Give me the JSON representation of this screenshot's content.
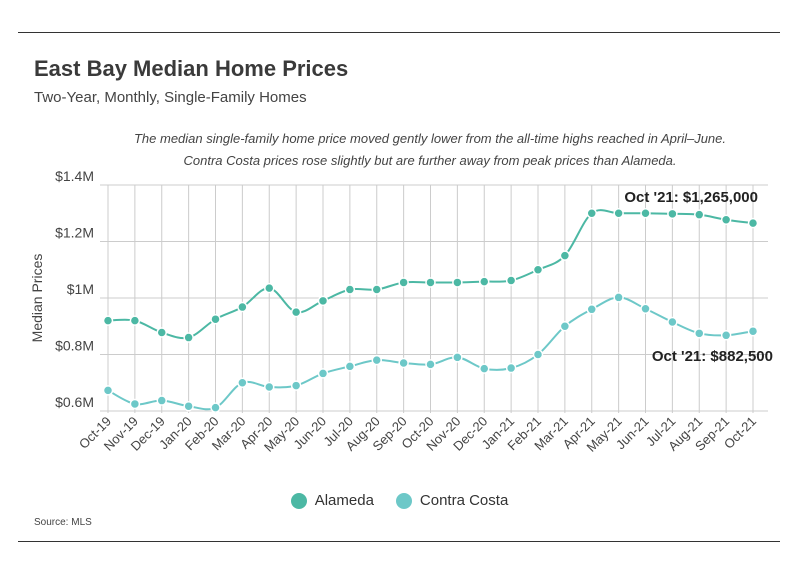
{
  "header": {
    "title": "East Bay Median Home Prices",
    "subtitle": "Two-Year, Monthly, Single-Family Homes"
  },
  "note": {
    "line1": "The median single-family home price moved gently lower from the all-time highs reached in April–June.",
    "line2": "Contra Costa prices rose slightly but are further away from peak prices than Alameda."
  },
  "source": "Source:  MLS",
  "colors": {
    "alameda": "#4cb8a4",
    "contra_costa": "#6dc8c8",
    "grid": "#cccccc",
    "axis_text": "#444444"
  },
  "chart_data": {
    "type": "line",
    "ylabel": "Median Prices",
    "ylim": [
      600000,
      1400000
    ],
    "yticks": [
      {
        "value": 600000,
        "label": "$0.6M"
      },
      {
        "value": 800000,
        "label": "$0.8M"
      },
      {
        "value": 1000000,
        "label": "$1M"
      },
      {
        "value": 1200000,
        "label": "$1.2M"
      },
      {
        "value": 1400000,
        "label": "$1.4M"
      }
    ],
    "categories": [
      "Oct-19",
      "Nov-19",
      "Dec-19",
      "Jan-20",
      "Feb-20",
      "Mar-20",
      "Apr-20",
      "May-20",
      "Jun-20",
      "Jul-20",
      "Aug-20",
      "Sep-20",
      "Oct-20",
      "Nov-20",
      "Dec-20",
      "Jan-21",
      "Feb-21",
      "Mar-21",
      "Apr-21",
      "May-21",
      "Jun-21",
      "Jul-21",
      "Aug-21",
      "Sep-21",
      "Oct-21"
    ],
    "grid": "vertical and horizontal",
    "legend_position": "bottom",
    "series": [
      {
        "name": "Alameda",
        "values": [
          920000,
          920000,
          878000,
          860000,
          925000,
          968000,
          1035000,
          950000,
          990000,
          1030000,
          1030000,
          1055000,
          1055000,
          1055000,
          1058000,
          1062000,
          1100000,
          1150000,
          1300000,
          1300000,
          1300000,
          1298000,
          1295000,
          1277000,
          1265000
        ]
      },
      {
        "name": "Contra Costa",
        "values": [
          673000,
          625000,
          637000,
          617000,
          612000,
          700000,
          685000,
          690000,
          733000,
          758000,
          780000,
          770000,
          765000,
          790000,
          750000,
          752000,
          800000,
          900000,
          960000,
          1002000,
          962000,
          915000,
          875000,
          868000,
          882500
        ]
      }
    ],
    "annotations": [
      {
        "series": "Alameda",
        "text": "Oct '21: $1,265,000"
      },
      {
        "series": "Contra Costa",
        "text": "Oct '21: $882,500"
      }
    ]
  }
}
